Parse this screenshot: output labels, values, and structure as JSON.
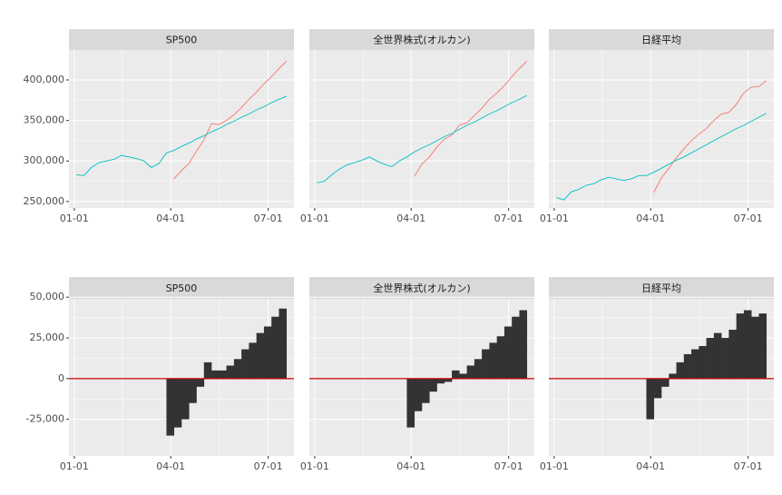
{
  "chart_data": [
    {
      "type": "line",
      "title": "SP500",
      "x": [
        "01-03",
        "01-10",
        "01-17",
        "01-24",
        "01-31",
        "02-07",
        "02-14",
        "02-21",
        "02-28",
        "03-07",
        "03-14",
        "03-21",
        "03-28",
        "04-04",
        "04-11",
        "04-18",
        "04-25",
        "05-02",
        "05-09",
        "05-16",
        "05-23",
        "05-30",
        "06-06",
        "06-13",
        "06-20",
        "06-27",
        "07-04",
        "07-11",
        "07-18"
      ],
      "series": [
        {
          "color": "#F8766D",
          "values": [
            null,
            null,
            null,
            null,
            null,
            null,
            null,
            null,
            null,
            null,
            null,
            null,
            null,
            278000,
            288000,
            297000,
            312000,
            326000,
            346000,
            345000,
            350000,
            357000,
            366000,
            376000,
            385000,
            395000,
            404000,
            414000,
            423000
          ]
        },
        {
          "color": "#00BFC4",
          "values": [
            283000,
            282000,
            292000,
            298000,
            300000,
            302000,
            307000,
            305000,
            303000,
            300000,
            292000,
            297000,
            310000,
            313000,
            318000,
            322000,
            327000,
            331000,
            336000,
            340000,
            345000,
            349000,
            354000,
            358000,
            363000,
            367000,
            372000,
            376000,
            380000
          ]
        }
      ],
      "xlim": [
        "12-27",
        "07-25"
      ],
      "xticks": [
        "01-01",
        "04-01",
        "07-01"
      ],
      "ylim": [
        242000,
        437000
      ],
      "yticks": [
        {
          "value": 250000,
          "label": "250,000"
        },
        {
          "value": 300000,
          "label": "300,000"
        },
        {
          "value": 350000,
          "label": "350,000"
        },
        {
          "value": 400000,
          "label": "400,000"
        }
      ],
      "grid": true
    },
    {
      "type": "line",
      "title": "全世界株式(オルカン)",
      "x": [
        "01-03",
        "01-10",
        "01-17",
        "01-24",
        "01-31",
        "02-07",
        "02-14",
        "02-21",
        "02-28",
        "03-07",
        "03-14",
        "03-21",
        "03-28",
        "04-04",
        "04-11",
        "04-18",
        "04-25",
        "05-02",
        "05-09",
        "05-16",
        "05-23",
        "05-30",
        "06-06",
        "06-13",
        "06-20",
        "06-27",
        "07-04",
        "07-11",
        "07-18"
      ],
      "series": [
        {
          "color": "#F8766D",
          "values": [
            null,
            null,
            null,
            null,
            null,
            null,
            null,
            null,
            null,
            null,
            null,
            null,
            null,
            281000,
            296000,
            305000,
            317000,
            327000,
            332000,
            344000,
            347000,
            356000,
            365000,
            376000,
            384000,
            393000,
            404000,
            414000,
            423000
          ]
        },
        {
          "color": "#00BFC4",
          "values": [
            273000,
            275000,
            283000,
            290000,
            295000,
            298000,
            301000,
            305000,
            300000,
            296000,
            293000,
            300000,
            305000,
            311000,
            316000,
            320000,
            325000,
            330000,
            334000,
            339000,
            344000,
            348000,
            353000,
            358000,
            362000,
            367000,
            372000,
            376000,
            381000
          ]
        }
      ],
      "xlim": [
        "12-27",
        "07-25"
      ],
      "xticks": [
        "01-01",
        "04-01",
        "07-01"
      ],
      "ylim": [
        242000,
        437000
      ],
      "yticks": [
        250000,
        300000,
        350000,
        400000
      ],
      "grid": true
    },
    {
      "type": "line",
      "title": "日経平均",
      "x": [
        "01-03",
        "01-10",
        "01-17",
        "01-24",
        "01-31",
        "02-07",
        "02-14",
        "02-21",
        "02-28",
        "03-07",
        "03-14",
        "03-21",
        "03-28",
        "04-04",
        "04-11",
        "04-18",
        "04-25",
        "05-02",
        "05-09",
        "05-16",
        "05-23",
        "05-30",
        "06-06",
        "06-13",
        "06-20",
        "06-27",
        "07-04",
        "07-11",
        "07-18"
      ],
      "series": [
        {
          "color": "#F8766D",
          "values": [
            null,
            null,
            null,
            null,
            null,
            null,
            null,
            null,
            null,
            null,
            null,
            null,
            null,
            261000,
            279000,
            291000,
            304000,
            315000,
            325000,
            333000,
            340000,
            350000,
            358000,
            360000,
            370000,
            384000,
            391000,
            392000,
            399000
          ]
        },
        {
          "color": "#00BFC4",
          "values": [
            255000,
            252000,
            262000,
            265000,
            270000,
            272000,
            277000,
            280000,
            278000,
            276000,
            278000,
            282000,
            282000,
            286000,
            291000,
            296000,
            301000,
            305000,
            310000,
            315000,
            320000,
            325000,
            330000,
            335000,
            340000,
            344000,
            349000,
            354000,
            359000
          ]
        }
      ],
      "xlim": [
        "12-27",
        "07-25"
      ],
      "xticks": [
        "01-01",
        "04-01",
        "07-01"
      ],
      "ylim": [
        242000,
        437000
      ],
      "yticks": [
        250000,
        300000,
        350000,
        400000
      ],
      "grid": true
    },
    {
      "type": "bar",
      "title": "SP500",
      "x": [
        "04-04",
        "04-11",
        "04-18",
        "04-25",
        "05-02",
        "05-09",
        "05-16",
        "05-23",
        "05-30",
        "06-06",
        "06-13",
        "06-20",
        "06-27",
        "07-04",
        "07-11",
        "07-18"
      ],
      "values": [
        -35000,
        -30000,
        -25000,
        -15000,
        -5000,
        10000,
        5000,
        5000,
        8000,
        12000,
        18000,
        22000,
        28000,
        32000,
        38000,
        43000
      ],
      "color": "#333333",
      "hline": {
        "value": 0,
        "color": "#CC0000"
      },
      "xlim": [
        "12-27",
        "07-25"
      ],
      "xticks": [
        "01-01",
        "04-01",
        "07-01"
      ],
      "ylim": [
        -47500,
        49000
      ],
      "yticks": [
        {
          "value": -25000,
          "label": "-25,000"
        },
        0,
        {
          "value": 25000,
          "label": "25,000"
        },
        {
          "value": 50000,
          "label": "50,000"
        }
      ],
      "grid": true
    },
    {
      "type": "bar",
      "title": "全世界株式(オルカン)",
      "x": [
        "04-04",
        "04-11",
        "04-18",
        "04-25",
        "05-02",
        "05-09",
        "05-16",
        "05-23",
        "05-30",
        "06-06",
        "06-13",
        "06-20",
        "06-27",
        "07-04",
        "07-11",
        "07-18"
      ],
      "values": [
        -30000,
        -20000,
        -15000,
        -8000,
        -3000,
        -2000,
        5000,
        3000,
        8000,
        12000,
        18000,
        22000,
        26000,
        32000,
        38000,
        42000
      ],
      "color": "#333333",
      "hline": {
        "value": 0,
        "color": "#CC0000"
      },
      "xlim": [
        "12-27",
        "07-25"
      ],
      "xticks": [
        "01-01",
        "04-01",
        "07-01"
      ],
      "ylim": [
        -47500,
        49000
      ],
      "yticks": [
        -25000,
        0,
        25000,
        50000
      ],
      "grid": true
    },
    {
      "type": "bar",
      "title": "日経平均",
      "x": [
        "04-04",
        "04-11",
        "04-18",
        "04-25",
        "05-02",
        "05-09",
        "05-16",
        "05-23",
        "05-30",
        "06-06",
        "06-13",
        "06-20",
        "06-27",
        "07-04",
        "07-11",
        "07-18"
      ],
      "values": [
        -25000,
        -12000,
        -5000,
        3000,
        10000,
        15000,
        18000,
        20000,
        25000,
        28000,
        25000,
        30000,
        40000,
        42000,
        38000,
        40000
      ],
      "color": "#333333",
      "hline": {
        "value": 0,
        "color": "#CC0000"
      },
      "xlim": [
        "12-27",
        "07-25"
      ],
      "xticks": [
        "01-01",
        "04-01",
        "07-01"
      ],
      "ylim": [
        -47500,
        49000
      ],
      "yticks": [
        -25000,
        0,
        25000,
        50000
      ],
      "grid": true
    }
  ]
}
